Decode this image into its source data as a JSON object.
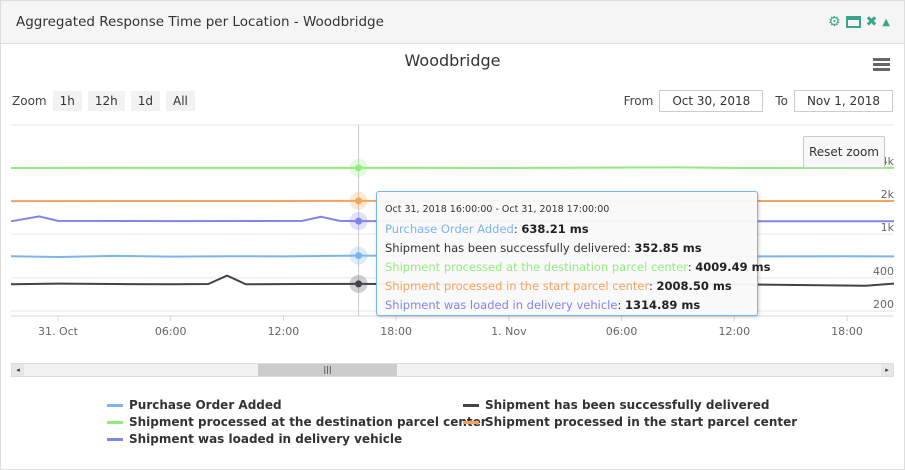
{
  "panel": {
    "title": "Aggregated Response Time per Location - Woodbridge",
    "icons": [
      "gear-icon",
      "window-icon",
      "close-icon",
      "collapse-icon"
    ]
  },
  "toolbar": {
    "zoom_label": "Zoom",
    "zoom_buttons": [
      "1h",
      "12h",
      "1d",
      "All"
    ],
    "from_label": "From",
    "from_value": "Oct 30, 2018",
    "to_label": "To",
    "to_value": "Nov 1, 2018",
    "reset_zoom": "Reset zoom"
  },
  "tooltip": {
    "header": "Oct 31, 2018 16:00:00 - Oct 31, 2018 17:00:00",
    "rows": [
      {
        "name": "Purchase Order Added",
        "value": "638.21 ms",
        "color": "#7cb5ec"
      },
      {
        "name": "Shipment has been successfully delivered",
        "value": "352.85 ms",
        "color": "#333333"
      },
      {
        "name": "Shipment processed at the destination parcel center",
        "value": "4009.49 ms",
        "color": "#90ed7d"
      },
      {
        "name": "Shipment processed in the start parcel center",
        "value": "2008.50 ms",
        "color": "#f7a35c"
      },
      {
        "name": "Shipment was loaded in delivery vehicle",
        "value": "1314.89 ms",
        "color": "#8085e9"
      }
    ]
  },
  "chart_data": {
    "type": "line",
    "title": "Woodbridge",
    "yscale": "log",
    "ylim": [
      200,
      8000
    ],
    "yticks": [
      "200",
      "400",
      "1k",
      "2k",
      "4k"
    ],
    "xticks": [
      "31. Oct",
      "06:00",
      "12:00",
      "18:00",
      "1. Nov",
      "06:00",
      "12:00",
      "18:00"
    ],
    "xlim": [
      "2018-10-30T21:30",
      "2018-11-01T20:30"
    ],
    "crosshair": "2018-10-31T16:00",
    "series": [
      {
        "name": "Purchase Order Added",
        "color": "#7cb5ec",
        "data": [
          [
            "2018-10-30T21:00",
            630
          ],
          [
            "2018-10-31T00:00",
            620
          ],
          [
            "2018-10-31T03:00",
            635
          ],
          [
            "2018-10-31T06:00",
            625
          ],
          [
            "2018-10-31T09:00",
            630
          ],
          [
            "2018-10-31T12:00",
            628
          ],
          [
            "2018-10-31T16:00",
            638.21
          ],
          [
            "2018-10-31T20:00",
            630
          ],
          [
            "2018-11-01T00:00",
            625
          ],
          [
            "2018-11-01T06:00",
            632
          ],
          [
            "2018-11-01T12:00",
            628
          ],
          [
            "2018-11-01T18:00",
            630
          ],
          [
            "2018-11-01T21:00",
            628
          ]
        ]
      },
      {
        "name": "Shipment has been successfully delivered",
        "color": "#434348",
        "data": [
          [
            "2018-10-30T21:00",
            350
          ],
          [
            "2018-10-31T00:00",
            355
          ],
          [
            "2018-10-31T03:00",
            352
          ],
          [
            "2018-10-31T06:00",
            350
          ],
          [
            "2018-10-31T08:00",
            352
          ],
          [
            "2018-10-31T09:00",
            420
          ],
          [
            "2018-10-31T10:00",
            350
          ],
          [
            "2018-10-31T13:00",
            352
          ],
          [
            "2018-10-31T16:00",
            352.85
          ],
          [
            "2018-10-31T20:00",
            350
          ],
          [
            "2018-11-01T06:00",
            352
          ],
          [
            "2018-11-01T12:00",
            350
          ],
          [
            "2018-11-01T19:00",
            340
          ],
          [
            "2018-11-01T21:00",
            355
          ]
        ]
      },
      {
        "name": "Shipment processed at the destination parcel center",
        "color": "#90ed7d",
        "data": [
          [
            "2018-10-30T21:00",
            4000
          ],
          [
            "2018-10-31T06:00",
            4005
          ],
          [
            "2018-10-31T16:00",
            4009.49
          ],
          [
            "2018-11-01T00:00",
            4000
          ],
          [
            "2018-11-01T09:00",
            4050
          ],
          [
            "2018-11-01T12:00",
            4000
          ],
          [
            "2018-11-01T21:00",
            4005
          ]
        ]
      },
      {
        "name": "Shipment processed in the start parcel center",
        "color": "#f7a35c",
        "data": [
          [
            "2018-10-30T21:00",
            2000
          ],
          [
            "2018-10-31T06:00",
            2005
          ],
          [
            "2018-10-31T16:00",
            2008.5
          ],
          [
            "2018-11-01T06:00",
            2000
          ],
          [
            "2018-11-01T21:00",
            2002
          ]
        ]
      },
      {
        "name": "Shipment was loaded in delivery vehicle",
        "color": "#8085e9",
        "data": [
          [
            "2018-10-30T21:00",
            1310
          ],
          [
            "2018-10-30T23:00",
            1450
          ],
          [
            "2018-10-31T00:00",
            1320
          ],
          [
            "2018-10-31T06:00",
            1315
          ],
          [
            "2018-10-31T13:00",
            1320
          ],
          [
            "2018-10-31T14:00",
            1440
          ],
          [
            "2018-10-31T15:00",
            1320
          ],
          [
            "2018-10-31T16:00",
            1314.89
          ],
          [
            "2018-11-01T06:00",
            1312
          ],
          [
            "2018-11-01T21:00",
            1310
          ]
        ]
      }
    ]
  },
  "legend": [
    "Purchase Order Added",
    "Shipment has been successfully delivered",
    "Shipment processed at the destination parcel center",
    "Shipment processed in the start parcel center",
    "Shipment was loaded in delivery vehicle"
  ]
}
